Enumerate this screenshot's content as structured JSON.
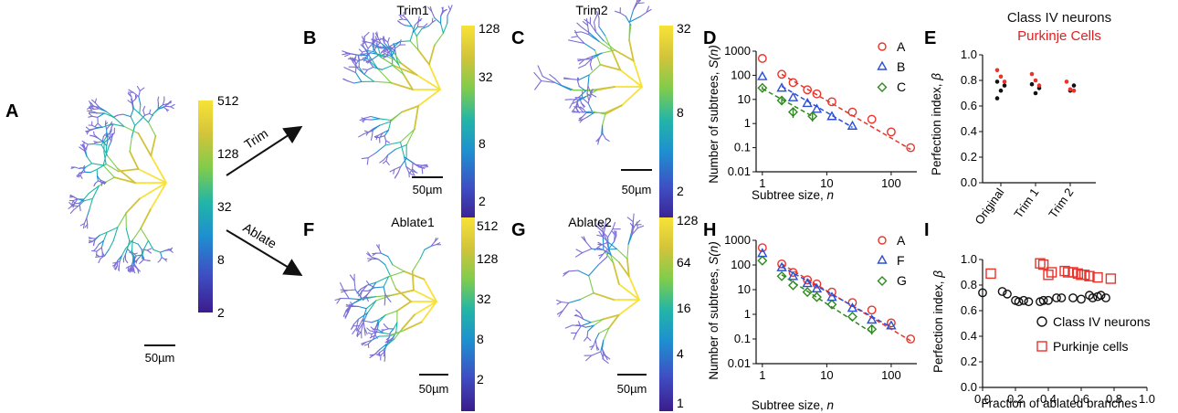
{
  "colors": {
    "red": "#e8342a",
    "blue": "#2a4fd6",
    "green": "#2e8a1e",
    "black": "#111111",
    "purkinje_text": "#e02020",
    "colormap": [
      "#3b1c8c",
      "#3e4fc4",
      "#1e8fd0",
      "#22b5a8",
      "#7fcc4c",
      "#d2c43a",
      "#f8e238"
    ]
  },
  "panels": {
    "A": {
      "letter": "A",
      "scalebar": "50µm",
      "colorbar_ticks": [
        "512",
        "128",
        "32",
        "8",
        "2"
      ]
    },
    "B": {
      "letter": "B",
      "title": "Trim1",
      "scalebar": "50µm",
      "colorbar_ticks": [
        "128",
        "32",
        "8",
        "2"
      ]
    },
    "C": {
      "letter": "C",
      "title": "Trim2",
      "scalebar": "50µm",
      "colorbar_ticks": [
        "32",
        "8",
        "2"
      ]
    },
    "F": {
      "letter": "F",
      "title": "Ablate1",
      "scalebar": "50µm",
      "colorbar_ticks": [
        "512",
        "128",
        "32",
        "8",
        "2"
      ]
    },
    "G": {
      "letter": "G",
      "title": "Ablate2",
      "scalebar": "50µm",
      "colorbar_ticks": [
        "128",
        "64",
        "16",
        "4",
        "1"
      ]
    },
    "D": {
      "letter": "D"
    },
    "H": {
      "letter": "H"
    },
    "E": {
      "letter": "E"
    },
    "I": {
      "letter": "I"
    }
  },
  "arrows": {
    "trim": "Trim",
    "ablate": "Ablate"
  },
  "chart_data": [
    {
      "id": "D",
      "type": "scatter",
      "xlabel_main": "Subtree size, ",
      "xlabel_var": "n",
      "ylabel_main": "Number of subtrees, ",
      "ylabel_var": "S(n)",
      "xscale": "log",
      "yscale": "log",
      "xlim": [
        0.8,
        250
      ],
      "ylim": [
        0.01,
        1000
      ],
      "xticks": [
        1,
        10,
        100
      ],
      "xticklabels": [
        "1",
        "10",
        "100"
      ],
      "yticks": [
        0.01,
        0.1,
        1,
        10,
        100,
        1000
      ],
      "yticklabels": [
        "0.01",
        "0.1",
        "1",
        "10",
        "100",
        "1000"
      ],
      "legend_position": "top-right",
      "series": [
        {
          "name": "A",
          "marker": "circle",
          "color": "#e8342a",
          "x": [
            1,
            2,
            3,
            5,
            7,
            12,
            25,
            50,
            100,
            200
          ],
          "y": [
            500,
            110,
            50,
            25,
            17,
            8,
            3,
            1.5,
            0.45,
            0.1
          ],
          "fit_x": [
            2,
            200
          ],
          "fit_y": [
            110,
            0.085
          ]
        },
        {
          "name": "B",
          "marker": "triangle",
          "color": "#2a4fd6",
          "x": [
            1,
            2,
            3,
            5,
            7,
            12,
            25
          ],
          "y": [
            90,
            30,
            12,
            7,
            4,
            2,
            0.8
          ],
          "fit_x": [
            2,
            25
          ],
          "fit_y": [
            35,
            0.7
          ]
        },
        {
          "name": "C",
          "marker": "diamond",
          "color": "#2e8a1e",
          "x": [
            1,
            2,
            3,
            6
          ],
          "y": [
            30,
            9,
            3,
            2
          ],
          "err": [
            5,
            3,
            1.3,
            0.8
          ],
          "fit_x": [
            1,
            6
          ],
          "fit_y": [
            28,
            2
          ]
        }
      ]
    },
    {
      "id": "H",
      "type": "scatter",
      "xlabel_main": "Subtree size, ",
      "xlabel_var": "n",
      "ylabel_main": "Number of subtrees, ",
      "ylabel_var": "S(n)",
      "xscale": "log",
      "yscale": "log",
      "xlim": [
        0.8,
        250
      ],
      "ylim": [
        0.01,
        1000
      ],
      "xticks": [
        1,
        10,
        100
      ],
      "xticklabels": [
        "1",
        "10",
        "100"
      ],
      "yticks": [
        0.01,
        0.1,
        1,
        10,
        100,
        1000
      ],
      "yticklabels": [
        "0.01",
        "0.1",
        "1",
        "10",
        "100",
        "1000"
      ],
      "legend_position": "top-right",
      "series": [
        {
          "name": "A",
          "marker": "circle",
          "color": "#e8342a",
          "x": [
            1,
            2,
            3,
            5,
            7,
            12,
            25,
            50,
            100,
            200
          ],
          "y": [
            500,
            110,
            50,
            25,
            17,
            8,
            3,
            1.5,
            0.45,
            0.1
          ],
          "fit_x": [
            2,
            200
          ],
          "fit_y": [
            110,
            0.085
          ]
        },
        {
          "name": "F",
          "marker": "triangle",
          "color": "#2a4fd6",
          "x": [
            1,
            2,
            3,
            5,
            7,
            12,
            25,
            50,
            100
          ],
          "y": [
            300,
            80,
            35,
            18,
            11,
            5,
            1.8,
            0.6,
            0.35
          ],
          "fit_x": [
            2,
            100
          ],
          "fit_y": [
            85,
            0.3
          ]
        },
        {
          "name": "G",
          "marker": "diamond",
          "color": "#2e8a1e",
          "x": [
            1,
            2,
            3,
            5,
            7,
            12,
            25,
            50
          ],
          "y": [
            150,
            35,
            15,
            8,
            5,
            2.5,
            0.8,
            0.25
          ],
          "err": [
            0,
            0,
            0,
            0,
            0,
            0,
            0,
            0.1
          ],
          "fit_x": [
            2,
            50
          ],
          "fit_y": [
            40,
            0.18
          ]
        }
      ]
    },
    {
      "id": "E",
      "type": "scatter",
      "title_line1": "Class IV neurons",
      "title_line2": "Purkinje Cells",
      "ylabel_main": "Perfection index, ",
      "ylabel_var": "β",
      "ylim": [
        0,
        1.0
      ],
      "yticks": [
        0,
        0.2,
        0.4,
        0.6,
        0.8,
        1.0
      ],
      "yticklabels": [
        "0.0",
        "0.2",
        "0.4",
        "0.6",
        "0.8",
        "1.0"
      ],
      "categories": [
        "Original",
        "Trim 1",
        "Trim 2"
      ],
      "series": [
        {
          "name": "Class IV neurons",
          "color": "#111111",
          "points": [
            [
              0,
              0.66
            ],
            [
              0,
              0.72
            ],
            [
              0,
              0.76
            ],
            [
              0,
              0.79
            ],
            [
              1,
              0.7
            ],
            [
              1,
              0.74
            ],
            [
              1,
              0.77
            ],
            [
              2,
              0.72
            ],
            [
              2,
              0.76
            ]
          ]
        },
        {
          "name": "Purkinje Cells",
          "color": "#e8342a",
          "points": [
            [
              0,
              0.88
            ],
            [
              0,
              0.83
            ],
            [
              0,
              0.79
            ],
            [
              1,
              0.85
            ],
            [
              1,
              0.8
            ],
            [
              1,
              0.76
            ],
            [
              2,
              0.79
            ],
            [
              2,
              0.73
            ],
            [
              2,
              0.72
            ]
          ]
        }
      ]
    },
    {
      "id": "I",
      "type": "scatter",
      "xlabel_main": "Fraction of ablated branches",
      "ylabel_main": "Perfection index, ",
      "ylabel_var": "β",
      "xlim": [
        0,
        1.0
      ],
      "ylim": [
        0,
        1.0
      ],
      "xticks": [
        0,
        0.2,
        0.4,
        0.6,
        0.8,
        1.0
      ],
      "xticklabels": [
        "0.0",
        "0.2",
        "0.4",
        "0.6",
        "0.8",
        "1.0"
      ],
      "yticks": [
        0,
        0.2,
        0.4,
        0.6,
        0.8,
        1.0
      ],
      "yticklabels": [
        "0.0",
        "0.2",
        "0.4",
        "0.6",
        "0.8",
        "1.0"
      ],
      "legend_position": "bottom-right",
      "series": [
        {
          "name": "Class IV neurons",
          "marker": "circle",
          "color": "#111111",
          "x": [
            0.0,
            0.12,
            0.15,
            0.2,
            0.22,
            0.25,
            0.28,
            0.35,
            0.37,
            0.4,
            0.45,
            0.48,
            0.55,
            0.6,
            0.65,
            0.67,
            0.7,
            0.72,
            0.75
          ],
          "y": [
            0.74,
            0.75,
            0.73,
            0.68,
            0.67,
            0.68,
            0.67,
            0.67,
            0.68,
            0.68,
            0.7,
            0.7,
            0.7,
            0.69,
            0.72,
            0.7,
            0.71,
            0.72,
            0.7
          ]
        },
        {
          "name": "Purkinje cells",
          "marker": "square",
          "color": "#e8342a",
          "x": [
            0.05,
            0.35,
            0.37,
            0.4,
            0.42,
            0.5,
            0.52,
            0.55,
            0.58,
            0.6,
            0.62,
            0.65,
            0.7,
            0.78
          ],
          "y": [
            0.89,
            0.97,
            0.96,
            0.88,
            0.9,
            0.91,
            0.9,
            0.9,
            0.89,
            0.88,
            0.88,
            0.87,
            0.86,
            0.85
          ]
        }
      ]
    }
  ]
}
